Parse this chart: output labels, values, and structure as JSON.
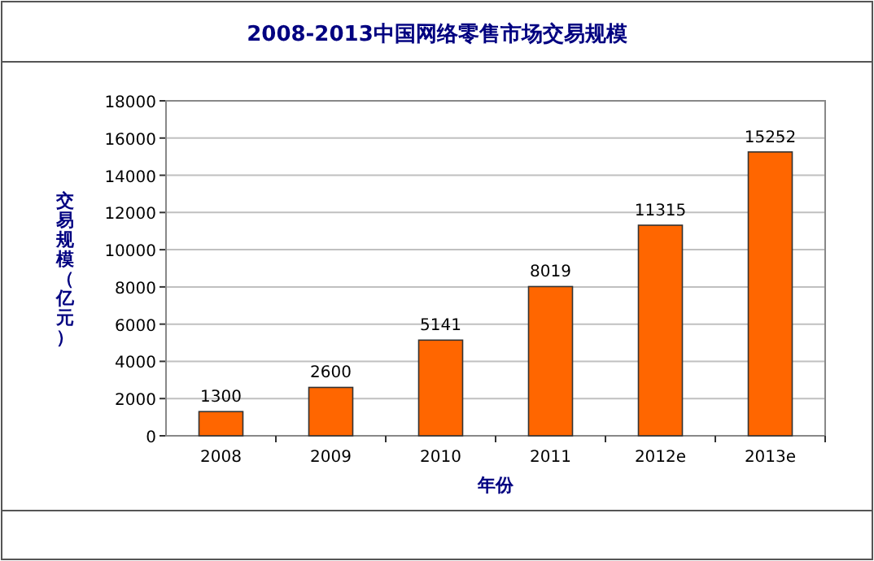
{
  "chart_data": {
    "type": "bar",
    "title": "2008-2013中国网络零售市场交易规模",
    "xlabel": "年份",
    "ylabel": "交易规模（亿元）",
    "categories": [
      "2008",
      "2009",
      "2010",
      "2011",
      "2012e",
      "2013e"
    ],
    "values": [
      1300,
      2600,
      5141,
      8019,
      11315,
      15252
    ],
    "color": "#ff6600",
    "data_labels": true,
    "grid": "y",
    "ylim": [
      0,
      18000
    ],
    "yticks": [
      0,
      2000,
      4000,
      6000,
      8000,
      10000,
      12000,
      14000,
      16000,
      18000
    ]
  }
}
